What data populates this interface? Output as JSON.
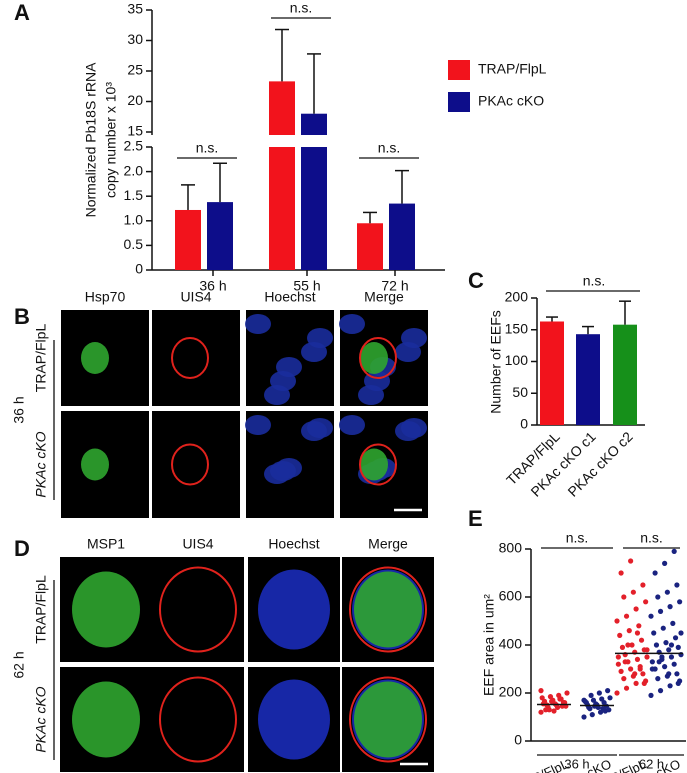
{
  "chart_data": [
    {
      "type": "broken-bar",
      "panel_label": "A",
      "y_label": [
        "Normalized Pb18S rRNA",
        "copy number x 10³"
      ],
      "categories": [
        "36 h",
        "55 h",
        "72 h"
      ],
      "series": [
        {
          "name": "TRAP/FlpL",
          "color": "#f2131c",
          "values": [
            1.22,
            23.3,
            0.95
          ],
          "errors": [
            0.51,
            8.5,
            0.22
          ]
        },
        {
          "name": "PKAc cKO",
          "color": "#0d0d8a",
          "values": [
            1.38,
            18.0,
            1.35
          ],
          "errors": [
            0.79,
            9.8,
            0.67
          ]
        }
      ],
      "ylim": [
        0,
        35
      ],
      "ybreak": [
        2.5,
        15
      ],
      "yticks": [
        0,
        0.5,
        {
          "value": 1,
          "label": "1.0"
        },
        1.5,
        {
          "value": 2,
          "label": "2.0"
        },
        2.5,
        15,
        20,
        25,
        30,
        35
      ],
      "annotations": [
        "n.s.",
        "n.s.",
        "n.s."
      ]
    },
    {
      "type": "bar",
      "panel_label": "C",
      "y_label": "Number of EEFs",
      "categories": [
        "TRAP/FlpL",
        "PKAc cKO c1",
        "PKAc cKO c2"
      ],
      "values": [
        163,
        143,
        158
      ],
      "errors": [
        7,
        12,
        37
      ],
      "colors": [
        "#f2131c",
        "#0d0d8a",
        "#16901a"
      ],
      "ylim": [
        0,
        200
      ],
      "yticks": [
        0,
        50,
        100,
        150,
        200
      ],
      "annotations": [
        "n.s."
      ]
    },
    {
      "type": "strip",
      "panel_label": "E",
      "y_label": "EEF area in um²",
      "ylim": [
        0,
        800
      ],
      "yticks": [
        0,
        200,
        400,
        600,
        800
      ],
      "groups": [
        {
          "label": "36 h",
          "annotation": "n.s.",
          "series": [
            {
              "name": "TRAP/FlpL",
              "color": "#e3202a",
              "median": 152,
              "values": [
                120,
                130,
                140,
                145,
                150,
                155,
                160,
                165,
                170,
                175,
                180,
                185,
                190,
                200,
                140,
                150,
                160,
                130,
                125,
                145,
                155,
                165,
                175,
                210
              ]
            },
            {
              "name": "PKAc cKO",
              "color": "#1a2380",
              "median": 148,
              "values": [
                100,
                110,
                120,
                130,
                135,
                140,
                145,
                150,
                155,
                160,
                165,
                170,
                175,
                180,
                190,
                200,
                210,
                140,
                150,
                125,
                160,
                145,
                135,
                170
              ]
            }
          ]
        },
        {
          "label": "62 h",
          "annotation": "n.s.",
          "series": [
            {
              "name": "TRAP/FlpL",
              "color": "#e3202a",
              "median": 365,
              "values": [
                200,
                220,
                240,
                250,
                260,
                270,
                280,
                290,
                300,
                310,
                320,
                330,
                340,
                350,
                360,
                370,
                380,
                390,
                400,
                420,
                440,
                460,
                480,
                500,
                520,
                550,
                580,
                600,
                620,
                650,
                700,
                750,
                300,
                350,
                400,
                450,
                380,
                330,
                280,
                240
              ]
            },
            {
              "name": "PKAc cKO",
              "color": "#1a2380",
              "median": 365,
              "values": [
                190,
                210,
                230,
                250,
                260,
                270,
                280,
                300,
                310,
                320,
                330,
                340,
                350,
                360,
                370,
                380,
                390,
                400,
                410,
                430,
                450,
                470,
                490,
                520,
                540,
                560,
                580,
                600,
                620,
                650,
                700,
                740,
                790,
                300,
                350,
                400,
                450,
                330,
                280,
                240
              ]
            }
          ]
        }
      ]
    }
  ],
  "image_panels": [
    {
      "panel_label": "B",
      "time": "36 h",
      "columns": [
        "Hsp70",
        "UIS4",
        "Hoechst",
        "Merge"
      ],
      "rows": [
        "TRAP/FlpL",
        "PKAc cKO"
      ]
    },
    {
      "panel_label": "D",
      "time": "62 h",
      "columns": [
        "MSP1",
        "UIS4",
        "Hoechst",
        "Merge"
      ],
      "rows": [
        "TRAP/FlpL",
        "PKAc cKO"
      ]
    }
  ]
}
